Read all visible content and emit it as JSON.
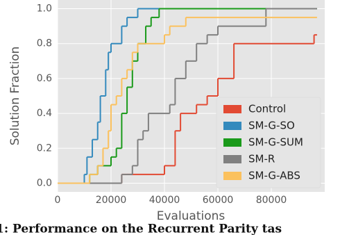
{
  "chart_data": {
    "type": "line",
    "step": true,
    "x_label": "Evaluations",
    "y_label": "Solution Fraction",
    "caption": "1: Performance on the Recurrent Parity tas",
    "xlim": [
      0,
      100000
    ],
    "ylim": [
      -0.05,
      1.05
    ],
    "xticks": [
      0,
      20000,
      40000,
      60000,
      80000
    ],
    "yticks": [
      {
        "value": 0,
        "label": "0.0"
      },
      0.2,
      0.4,
      0.6,
      0.8,
      {
        "value": 1,
        "label": "1.0"
      }
    ],
    "grid": true,
    "legend": "lower right",
    "series": [
      {
        "name": "Control",
        "color": "#e24a33",
        "x": [
          0,
          24000,
          26000,
          40000,
          44000,
          46000,
          52000,
          56000,
          60000,
          66000,
          96000,
          97000
        ],
        "values": [
          0,
          0.05,
          0.05,
          0.1,
          0.3,
          0.4,
          0.45,
          0.5,
          0.6,
          0.8,
          0.85,
          0.85
        ]
      },
      {
        "name": "SM-G-SO",
        "color": "#348abd",
        "x": [
          0,
          10000,
          11000,
          13000,
          15000,
          16000,
          18000,
          19000,
          20000,
          24000,
          26000,
          30000,
          97000
        ],
        "values": [
          0,
          0.05,
          0.15,
          0.25,
          0.35,
          0.5,
          0.65,
          0.75,
          0.8,
          0.9,
          0.95,
          1.0,
          1.0
        ]
      },
      {
        "name": "SM-G-SUM",
        "color": "#1a9a1a",
        "x": [
          0,
          12000,
          15000,
          20000,
          22000,
          24000,
          26000,
          28000,
          30000,
          33000,
          35000,
          38000,
          97000
        ],
        "values": [
          0,
          0.05,
          0.1,
          0.15,
          0.2,
          0.4,
          0.55,
          0.7,
          0.8,
          0.9,
          0.95,
          1.0,
          1.0
        ]
      },
      {
        "name": "SM-R",
        "color": "#808080",
        "x": [
          0,
          24000,
          28000,
          30000,
          32000,
          34000,
          42000,
          44000,
          48000,
          52000,
          56000,
          60000,
          78000,
          97000
        ],
        "values": [
          0,
          0.05,
          0.1,
          0.25,
          0.3,
          0.4,
          0.45,
          0.6,
          0.7,
          0.8,
          0.85,
          0.9,
          1.0,
          1.0
        ]
      },
      {
        "name": "SM-G-ABS",
        "color": "#fbc15e",
        "x": [
          0,
          12000,
          15000,
          17000,
          19000,
          20000,
          22000,
          24000,
          26000,
          28000,
          30000,
          40000,
          42000,
          48000,
          97000
        ],
        "values": [
          0,
          0.05,
          0.1,
          0.2,
          0.3,
          0.45,
          0.5,
          0.6,
          0.65,
          0.75,
          0.8,
          0.85,
          0.9,
          0.95,
          0.95
        ]
      }
    ]
  }
}
